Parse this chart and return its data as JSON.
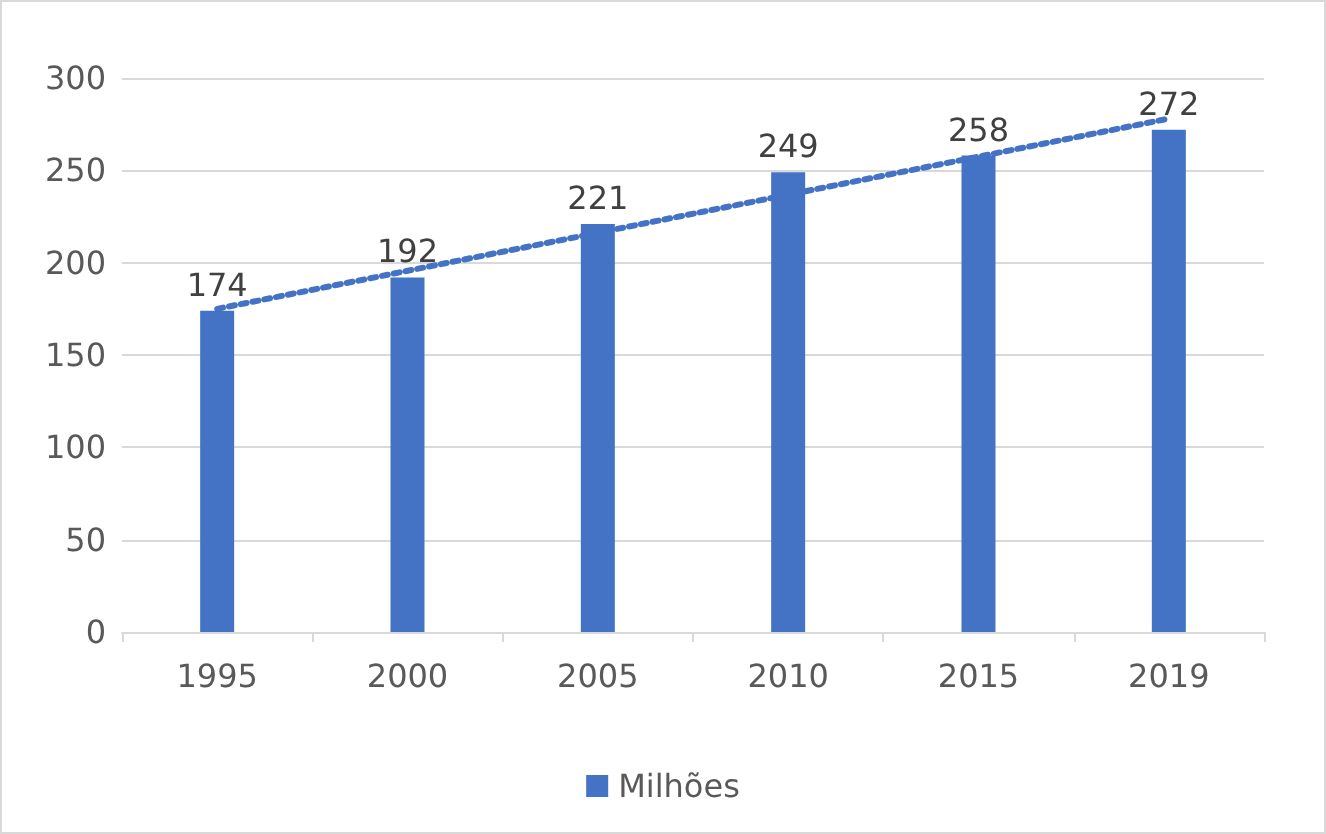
{
  "chart_data": {
    "type": "bar",
    "categories": [
      "1995",
      "2000",
      "2005",
      "2010",
      "2015",
      "2019"
    ],
    "series": [
      {
        "name": "Milhões",
        "color": "#4472c4",
        "values": [
          174,
          192,
          221,
          249,
          258,
          272
        ],
        "value_labels": [
          "174",
          "192",
          "221",
          "249",
          "258",
          "272"
        ]
      },
      {
        "type": "line",
        "color": "#4472c4",
        "line_style": "dotted",
        "marker": "none",
        "values": [
          175,
          null,
          null,
          null,
          null,
          278
        ]
      }
    ],
    "ylim": [
      0,
      300
    ],
    "yticks": [
      0,
      50,
      100,
      150,
      200,
      250,
      300
    ],
    "grid": "y",
    "legend": "bottom"
  }
}
